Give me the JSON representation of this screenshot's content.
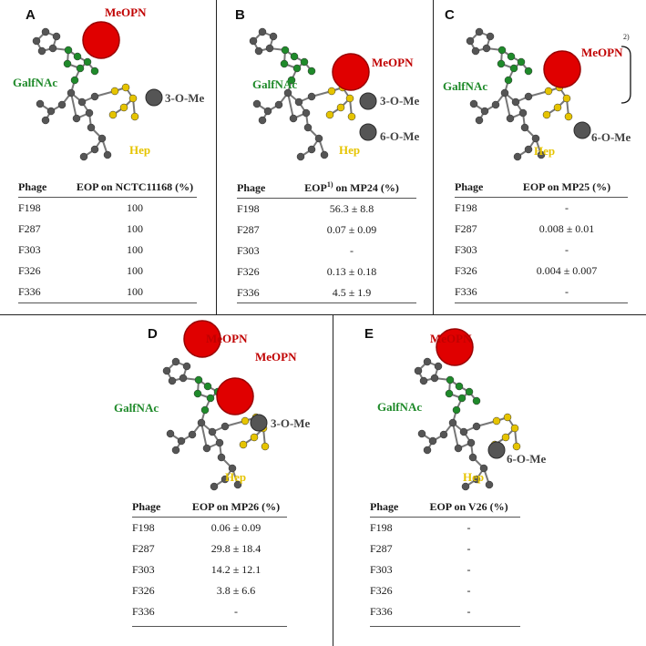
{
  "label_text": {
    "meopn": "MeOPN",
    "galfnac": "GalfNAc",
    "hep": "Hep",
    "ome3": "3-O-Me",
    "ome6": "6-O-Me"
  },
  "colors": {
    "meopn": "#c00000",
    "galfnac": "#1f8a2a",
    "hep": "#e6c400",
    "methyl": "#555555"
  },
  "panels": [
    {
      "id": "A",
      "col_phage": "Phage",
      "col_eop": "EOP on NCTC11168 (%)",
      "rows": [
        {
          "phage": "F198",
          "eop": "100"
        },
        {
          "phage": "F287",
          "eop": "100"
        },
        {
          "phage": "F303",
          "eop": "100"
        },
        {
          "phage": "F326",
          "eop": "100"
        },
        {
          "phage": "F336",
          "eop": "100"
        }
      ]
    },
    {
      "id": "B",
      "col_phage": "Phage",
      "col_eop_pre": "EOP",
      "col_eop_sup": "1)",
      "col_eop_post": " on MP24 (%)",
      "rows": [
        {
          "phage": "F198",
          "eop": "56.3 ± 8.8"
        },
        {
          "phage": "F287",
          "eop": "0.07 ± 0.09"
        },
        {
          "phage": "F303",
          "eop": "-"
        },
        {
          "phage": "F326",
          "eop": "0.13 ± 0.18"
        },
        {
          "phage": "F336",
          "eop": "4.5 ± 1.9"
        }
      ]
    },
    {
      "id": "C",
      "col_phage": "Phage",
      "col_eop": "EOP on MP25 (%)",
      "bracket_note": "2)",
      "rows": [
        {
          "phage": "F198",
          "eop": "-"
        },
        {
          "phage": "F287",
          "eop": "0.008 ± 0.01"
        },
        {
          "phage": "F303",
          "eop": "-"
        },
        {
          "phage": "F326",
          "eop": "0.004 ± 0.007"
        },
        {
          "phage": "F336",
          "eop": "-"
        }
      ]
    },
    {
      "id": "D",
      "col_phage": "Phage",
      "col_eop": "EOP on MP26 (%)",
      "rows": [
        {
          "phage": "F198",
          "eop": "0.06 ± 0.09"
        },
        {
          "phage": "F287",
          "eop": "29.8 ± 18.4"
        },
        {
          "phage": "F303",
          "eop": "14.2 ± 12.1"
        },
        {
          "phage": "F326",
          "eop": "3.8 ± 6.6"
        },
        {
          "phage": "F336",
          "eop": "-"
        }
      ]
    },
    {
      "id": "E",
      "col_phage": "Phage",
      "col_eop": "EOP on V26 (%)",
      "rows": [
        {
          "phage": "F198",
          "eop": "-"
        },
        {
          "phage": "F287",
          "eop": "-"
        },
        {
          "phage": "F303",
          "eop": "-"
        },
        {
          "phage": "F326",
          "eop": "-"
        },
        {
          "phage": "F336",
          "eop": "-"
        }
      ]
    }
  ]
}
